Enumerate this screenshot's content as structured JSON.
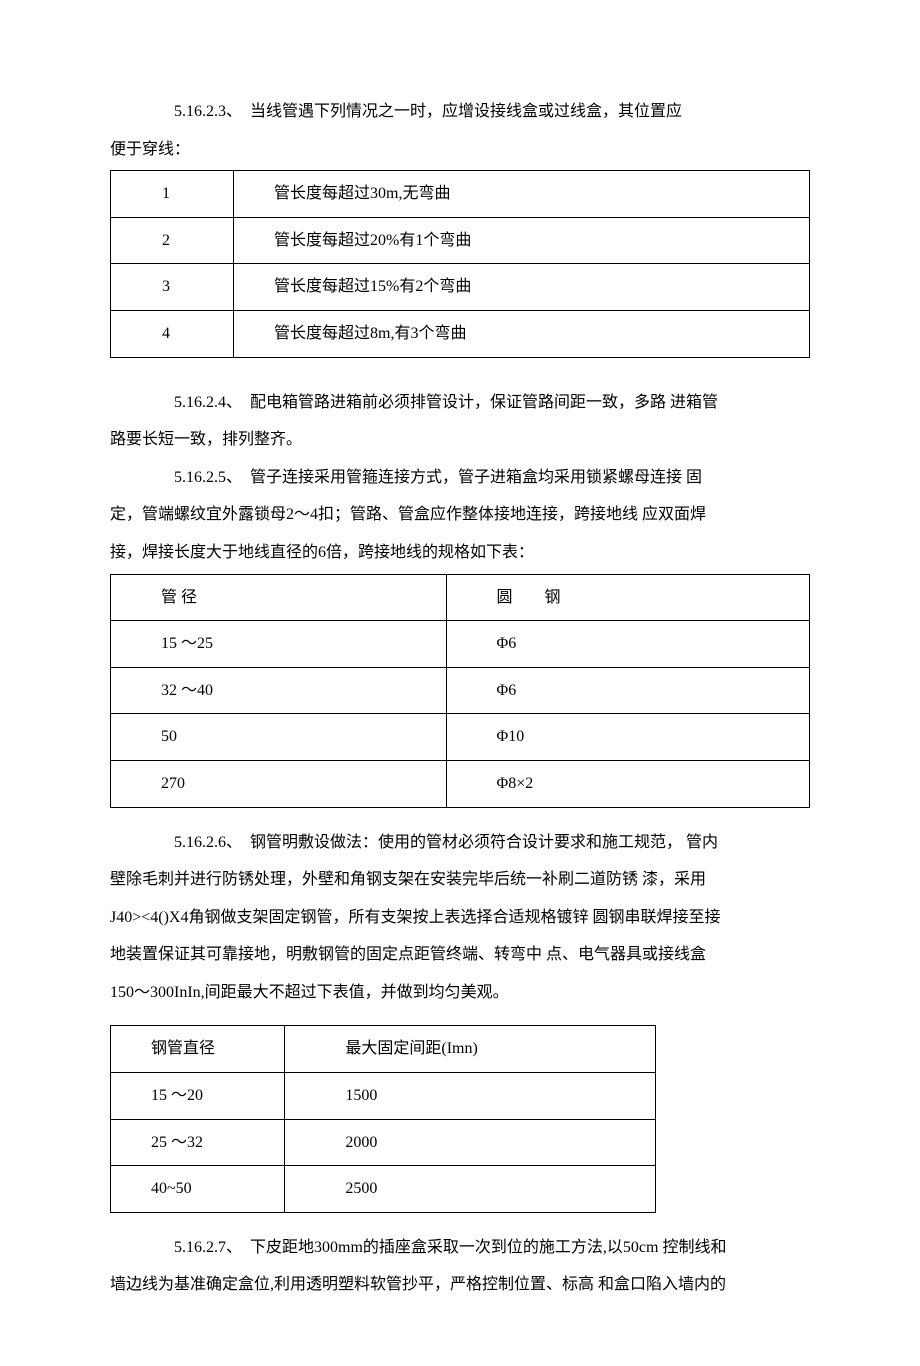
{
  "p1_a": "5.16.2.3、　当线管遇下列情况之一时，应增设接线盒或过线盒，其位置应",
  "p1_b": "便于穿线：",
  "table1": {
    "rows": [
      [
        "1",
        "管长度每超过30m,无弯曲"
      ],
      [
        "2",
        "管长度每超过20%有1个弯曲"
      ],
      [
        "3",
        "管长度每超过15%有2个弯曲"
      ],
      [
        "4",
        "管长度每超过8m,有3个弯曲"
      ]
    ]
  },
  "p2_a": "5.16.2.4、　配电箱管路进箱前必须排管设计，保证管路间距一致，多路 进箱管",
  "p2_b": "路要长短一致，排列整齐。",
  "p3_a": "5.16.2.5、　管子连接采用管箍连接方式，管子进箱盒均采用锁紧螺母连接 固",
  "p3_b": "定，管端螺纹宜外露锁母2〜4扣；管路、管盒应作整体接地连接，跨接地线 应双面焊",
  "p3_c": "接，焊接长度大于地线直径的6倍，跨接地线的规格如下表：",
  "table2": {
    "header": [
      "管 径",
      "圆　　钢"
    ],
    "rows": [
      [
        "15 〜25",
        "Φ6"
      ],
      [
        "32 〜40",
        "Φ6"
      ],
      [
        "50",
        "Φ10"
      ],
      [
        "270",
        "Φ8×2"
      ]
    ]
  },
  "p4_a": "5.16.2.6、　钢管明敷设做法：使用的管材必须符合设计要求和施工规范， 管内",
  "p4_b": "壁除毛刺并进行防锈处理，外壁和角钢支架在安装完毕后统一补刷二道防锈 漆，采用",
  "p4_c": "J40><4()X4角钢做支架固定钢管，所有支架按上表选择合适规格镀锌 圆钢串联焊接至接",
  "p4_d": "地装置保证其可靠接地，明敷钢管的固定点距管终端、转弯中 点、电气器具或接线盒",
  "p4_e": "150〜300InIn,间距最大不超过下表值，并做到均匀美观。",
  "table3": {
    "header": [
      "钢管直径",
      "最大固定间距(Imn)"
    ],
    "rows": [
      [
        "15 〜20",
        "1500"
      ],
      [
        "25 〜32",
        "2000"
      ],
      [
        "40~50",
        "2500"
      ]
    ]
  },
  "p5_a": "5.16.2.7、　下皮距地300mm的插座盒采取一次到位的施工方法,以50cm 控制线和",
  "p5_b": "墙边线为基准确定盒位,利用透明塑料软管抄平，严格控制位置、标高 和盒口陷入墙内的"
}
